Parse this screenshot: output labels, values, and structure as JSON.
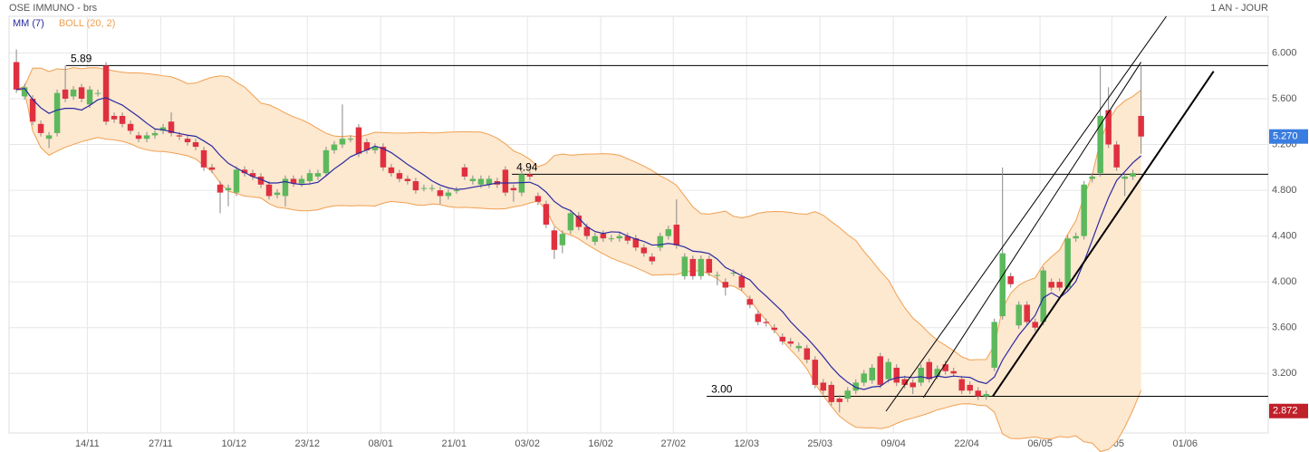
{
  "chart_data": {
    "type": "candlestick",
    "title": "OSE IMMUNO - brs",
    "period_label": "1 AN - JOUR",
    "indicators": [
      {
        "name": "MM (7)",
        "kind": "sma",
        "period": 7,
        "color": "#2a2aa0"
      },
      {
        "name": "BOLL (20, 2)",
        "kind": "bollinger",
        "period": 20,
        "k": 2,
        "color": "#f0a050",
        "fill": "#fde8d0"
      }
    ],
    "up_color": "#5cb85c",
    "down_color": "#e0303f",
    "xlim": [
      -0.9,
      153.6
    ],
    "ylim": [
      2.68,
      6.32
    ],
    "xticks": [
      {
        "value": 8.7,
        "label": "14/11"
      },
      {
        "value": 17.7,
        "label": "27/11"
      },
      {
        "value": 26.7,
        "label": "10/12"
      },
      {
        "value": 35.7,
        "label": "23/12"
      },
      {
        "value": 44.7,
        "label": "08/01"
      },
      {
        "value": 53.7,
        "label": "21/01"
      },
      {
        "value": 62.7,
        "label": "03/02"
      },
      {
        "value": 71.7,
        "label": "16/02"
      },
      {
        "value": 80.6,
        "label": "27/02"
      },
      {
        "value": 89.6,
        "label": "12/03"
      },
      {
        "value": 98.6,
        "label": "25/03"
      },
      {
        "value": 107.6,
        "label": "09/04"
      },
      {
        "value": 116.6,
        "label": "22/04"
      },
      {
        "value": 125.6,
        "label": "06/05"
      },
      {
        "value": 134.4,
        "label": "19/05"
      },
      {
        "value": 143.4,
        "label": "01/06"
      }
    ],
    "yticks": [
      {
        "value": 3.2,
        "label": "3.200"
      },
      {
        "value": 3.6,
        "label": "3.600"
      },
      {
        "value": 4.0,
        "label": "4.000"
      },
      {
        "value": 4.4,
        "label": "4.400"
      },
      {
        "value": 4.8,
        "label": "4.800"
      },
      {
        "value": 5.2,
        "label": "5.200"
      },
      {
        "value": 5.6,
        "label": "5.600"
      },
      {
        "value": 6.0,
        "label": "6.000"
      }
    ],
    "grid": true,
    "levels": [
      {
        "label": "5.89",
        "value": 5.89,
        "start": 6.1
      },
      {
        "label": "4.94",
        "value": 4.94,
        "start": 60.8
      },
      {
        "label": "3.00",
        "value": 3.0,
        "start": 84.7
      }
    ],
    "trend_lines": [
      {
        "from": [
          106.7,
          2.87
        ],
        "to": [
          141.1,
          6.32
        ],
        "width": 1
      },
      {
        "from": [
          111.3,
          2.99
        ],
        "to": [
          138.0,
          5.92
        ],
        "width": 1
      },
      {
        "from": [
          119.8,
          3.0
        ],
        "to": [
          146.9,
          5.84
        ],
        "width": 2
      }
    ],
    "price_tags": [
      {
        "value": 5.27,
        "label": "5.270",
        "color": "#3a7de0"
      },
      {
        "value": 2.872,
        "label": "2.872",
        "color": "#c0202a"
      }
    ],
    "candles": [
      [
        5.92,
        6.03,
        5.65,
        5.68
      ],
      [
        5.62,
        5.73,
        5.59,
        5.7
      ],
      [
        5.6,
        5.63,
        5.37,
        5.4
      ],
      [
        5.38,
        5.41,
        5.27,
        5.3
      ],
      [
        5.25,
        5.31,
        5.17,
        5.28
      ],
      [
        5.3,
        5.68,
        5.27,
        5.65
      ],
      [
        5.68,
        5.89,
        5.57,
        5.6
      ],
      [
        5.62,
        5.71,
        5.59,
        5.68
      ],
      [
        5.7,
        5.73,
        5.57,
        5.6
      ],
      [
        5.55,
        5.71,
        5.52,
        5.68
      ],
      [
        5.65,
        5.68,
        5.62,
        5.65
      ],
      [
        5.89,
        5.92,
        5.37,
        5.4
      ],
      [
        5.45,
        5.48,
        5.39,
        5.42
      ],
      [
        5.45,
        5.48,
        5.35,
        5.38
      ],
      [
        5.38,
        5.41,
        5.29,
        5.32
      ],
      [
        5.28,
        5.31,
        5.22,
        5.25
      ],
      [
        5.25,
        5.31,
        5.22,
        5.28
      ],
      [
        5.28,
        5.33,
        5.25,
        5.3
      ],
      [
        5.32,
        5.38,
        5.29,
        5.35
      ],
      [
        5.4,
        5.48,
        5.27,
        5.3
      ],
      [
        5.28,
        5.31,
        5.24,
        5.27
      ],
      [
        5.25,
        5.28,
        5.19,
        5.22
      ],
      [
        5.22,
        5.25,
        5.15,
        5.18
      ],
      [
        5.15,
        5.18,
        4.97,
        5.0
      ],
      [
        5.0,
        5.03,
        4.95,
        4.98
      ],
      [
        4.85,
        4.88,
        4.6,
        4.78
      ],
      [
        4.8,
        4.85,
        4.66,
        4.82
      ],
      [
        4.78,
        5.01,
        4.75,
        4.98
      ],
      [
        4.98,
        5.01,
        4.92,
        4.95
      ],
      [
        4.95,
        4.98,
        4.89,
        4.92
      ],
      [
        4.92,
        4.95,
        4.82,
        4.85
      ],
      [
        4.85,
        4.88,
        4.72,
        4.75
      ],
      [
        4.76,
        4.81,
        4.73,
        4.78
      ],
      [
        4.75,
        4.93,
        4.66,
        4.9
      ],
      [
        4.9,
        4.93,
        4.83,
        4.86
      ],
      [
        4.86,
        4.93,
        4.83,
        4.9
      ],
      [
        4.88,
        4.98,
        4.85,
        4.95
      ],
      [
        4.92,
        4.98,
        4.89,
        4.95
      ],
      [
        4.95,
        5.18,
        4.92,
        5.15
      ],
      [
        5.15,
        5.23,
        5.12,
        5.2
      ],
      [
        5.2,
        5.55,
        5.17,
        5.25
      ],
      [
        5.25,
        5.28,
        5.22,
        5.25
      ],
      [
        5.35,
        5.38,
        5.09,
        5.12
      ],
      [
        5.22,
        5.25,
        5.12,
        5.15
      ],
      [
        5.15,
        5.21,
        5.12,
        5.18
      ],
      [
        5.18,
        5.21,
        4.97,
        5.0
      ],
      [
        5.0,
        5.03,
        4.92,
        4.95
      ],
      [
        4.95,
        4.98,
        4.87,
        4.9
      ],
      [
        4.9,
        4.93,
        4.85,
        4.88
      ],
      [
        4.88,
        4.91,
        4.77,
        4.8
      ],
      [
        4.82,
        4.85,
        4.79,
        4.82
      ],
      [
        4.82,
        4.85,
        4.79,
        4.82
      ],
      [
        4.8,
        4.83,
        4.68,
        4.75
      ],
      [
        4.75,
        4.81,
        4.72,
        4.78
      ],
      [
        4.8,
        4.83,
        4.77,
        4.8
      ],
      [
        5.0,
        5.03,
        4.89,
        4.92
      ],
      [
        4.88,
        4.93,
        4.85,
        4.9
      ],
      [
        4.85,
        4.93,
        4.82,
        4.9
      ],
      [
        4.85,
        4.93,
        4.82,
        4.9
      ],
      [
        4.88,
        4.91,
        4.82,
        4.85
      ],
      [
        4.98,
        5.01,
        4.75,
        4.78
      ],
      [
        4.82,
        4.85,
        4.7,
        4.8
      ],
      [
        4.78,
        4.97,
        4.75,
        4.94
      ],
      [
        4.94,
        4.97,
        4.89,
        4.92
      ],
      [
        4.75,
        4.78,
        4.67,
        4.7
      ],
      [
        4.68,
        4.71,
        4.47,
        4.5
      ],
      [
        4.45,
        4.48,
        4.2,
        4.28
      ],
      [
        4.32,
        4.45,
        4.25,
        4.42
      ],
      [
        4.45,
        4.63,
        4.42,
        4.6
      ],
      [
        4.58,
        4.61,
        4.45,
        4.48
      ],
      [
        4.48,
        4.51,
        4.37,
        4.4
      ],
      [
        4.35,
        4.43,
        4.32,
        4.4
      ],
      [
        4.42,
        4.45,
        4.35,
        4.38
      ],
      [
        4.38,
        4.41,
        4.35,
        4.38
      ],
      [
        4.38,
        4.43,
        4.35,
        4.4
      ],
      [
        4.4,
        4.43,
        4.33,
        4.36
      ],
      [
        4.38,
        4.41,
        4.27,
        4.3
      ],
      [
        4.3,
        4.33,
        4.22,
        4.25
      ],
      [
        4.22,
        4.25,
        4.15,
        4.18
      ],
      [
        4.3,
        4.43,
        4.27,
        4.4
      ],
      [
        4.4,
        4.49,
        4.37,
        4.46
      ],
      [
        4.5,
        4.72,
        4.29,
        4.32
      ],
      [
        4.05,
        4.25,
        4.02,
        4.22
      ],
      [
        4.2,
        4.23,
        4.02,
        4.05
      ],
      [
        4.05,
        4.23,
        4.02,
        4.2
      ],
      [
        4.2,
        4.23,
        4.05,
        4.08
      ],
      [
        4.06,
        4.09,
        3.97,
        4.06
      ],
      [
        4.0,
        4.03,
        3.88,
        3.95
      ],
      [
        4.08,
        4.11,
        4.05,
        4.08
      ],
      [
        4.05,
        4.08,
        3.92,
        3.95
      ],
      [
        3.85,
        3.88,
        3.77,
        3.8
      ],
      [
        3.72,
        3.75,
        3.62,
        3.65
      ],
      [
        3.65,
        3.68,
        3.61,
        3.64
      ],
      [
        3.6,
        3.63,
        3.55,
        3.58
      ],
      [
        3.52,
        3.55,
        3.45,
        3.48
      ],
      [
        3.48,
        3.51,
        3.43,
        3.46
      ],
      [
        3.42,
        3.47,
        3.39,
        3.44
      ],
      [
        3.42,
        3.45,
        3.29,
        3.32
      ],
      [
        3.32,
        3.35,
        3.07,
        3.1
      ],
      [
        3.12,
        3.15,
        3.02,
        3.05
      ],
      [
        3.1,
        3.13,
        2.92,
        2.95
      ],
      [
        2.98,
        3.01,
        2.86,
        2.95
      ],
      [
        2.98,
        3.08,
        2.95,
        3.05
      ],
      [
        3.05,
        3.15,
        3.02,
        3.12
      ],
      [
        3.12,
        3.23,
        3.09,
        3.2
      ],
      [
        3.14,
        3.28,
        3.11,
        3.25
      ],
      [
        3.35,
        3.38,
        3.07,
        3.1
      ],
      [
        3.15,
        3.33,
        3.12,
        3.3
      ],
      [
        3.25,
        3.28,
        3.09,
        3.12
      ],
      [
        3.15,
        3.18,
        3.07,
        3.1
      ],
      [
        3.12,
        3.15,
        3.02,
        3.08
      ],
      [
        3.12,
        3.28,
        3.09,
        3.25
      ],
      [
        3.3,
        3.33,
        3.12,
        3.15
      ],
      [
        3.18,
        3.27,
        3.15,
        3.24
      ],
      [
        3.28,
        3.31,
        3.19,
        3.22
      ],
      [
        3.22,
        3.25,
        3.17,
        3.2
      ],
      [
        3.15,
        3.18,
        3.02,
        3.05
      ],
      [
        3.1,
        3.13,
        3.02,
        3.05
      ],
      [
        3.05,
        3.08,
        2.97,
        3.0
      ],
      [
        3.0,
        3.05,
        2.97,
        3.02
      ],
      [
        3.25,
        3.68,
        3.22,
        3.65
      ],
      [
        3.7,
        5.0,
        3.67,
        4.25
      ],
      [
        4.05,
        4.08,
        3.95,
        3.98
      ],
      [
        3.62,
        3.83,
        3.59,
        3.8
      ],
      [
        3.8,
        3.83,
        3.62,
        3.65
      ],
      [
        3.65,
        3.68,
        3.57,
        3.6
      ],
      [
        3.65,
        4.13,
        3.62,
        4.1
      ],
      [
        4.0,
        4.03,
        3.92,
        3.95
      ],
      [
        4.0,
        4.03,
        3.92,
        3.95
      ],
      [
        3.95,
        4.41,
        3.92,
        4.38
      ],
      [
        4.38,
        4.43,
        4.35,
        4.4
      ],
      [
        4.4,
        4.88,
        4.37,
        4.85
      ],
      [
        4.9,
        4.95,
        4.87,
        4.92
      ],
      [
        4.95,
        5.89,
        4.92,
        5.45
      ],
      [
        5.5,
        5.7,
        5.17,
        5.2
      ],
      [
        5.2,
        5.23,
        4.97,
        5.0
      ],
      [
        4.9,
        4.95,
        4.75,
        4.92
      ],
      [
        4.92,
        4.98,
        4.89,
        4.95
      ],
      [
        5.45,
        5.89,
        5.12,
        5.27
      ]
    ]
  }
}
